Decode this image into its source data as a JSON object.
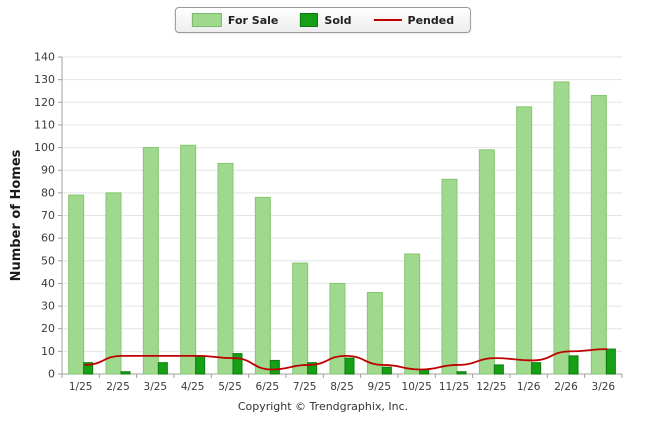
{
  "chart_data": {
    "type": "bar",
    "title": "",
    "categories": [
      "1/25",
      "2/25",
      "3/25",
      "4/25",
      "5/25",
      "6/25",
      "7/25",
      "8/25",
      "9/25",
      "10/25",
      "11/25",
      "12/25",
      "1/26",
      "2/26",
      "3/26"
    ],
    "series": [
      {
        "name": "For Sale",
        "type": "bar",
        "color": "#9fd98d",
        "border_color": "#85c671",
        "values": [
          79,
          80,
          100,
          101,
          93,
          78,
          49,
          40,
          36,
          53,
          86,
          99,
          118,
          129,
          123
        ]
      },
      {
        "name": "Sold",
        "type": "bar",
        "color": "#16a016",
        "border_color": "#0c7a0c",
        "values": [
          5,
          1,
          5,
          8,
          9,
          6,
          5,
          7,
          3,
          2,
          1,
          4,
          5,
          8,
          11
        ]
      },
      {
        "name": "Pended",
        "type": "line",
        "color": "#c00000",
        "values": [
          4,
          8,
          8,
          8,
          7,
          2,
          4,
          8,
          4,
          2,
          4,
          7,
          6,
          10,
          11
        ]
      }
    ],
    "xlabel": "",
    "ylabel": "Number of Homes",
    "ylim": [
      0,
      140
    ],
    "ytick_step": 10,
    "grid": true,
    "legend_position": "top",
    "gridline_color": "#e4e4e4",
    "axis_color": "#a0a0a0",
    "tick_label_color": "#3a3a3a"
  },
  "footer": {
    "copyright": "Copyright © Trendgraphix, Inc."
  }
}
